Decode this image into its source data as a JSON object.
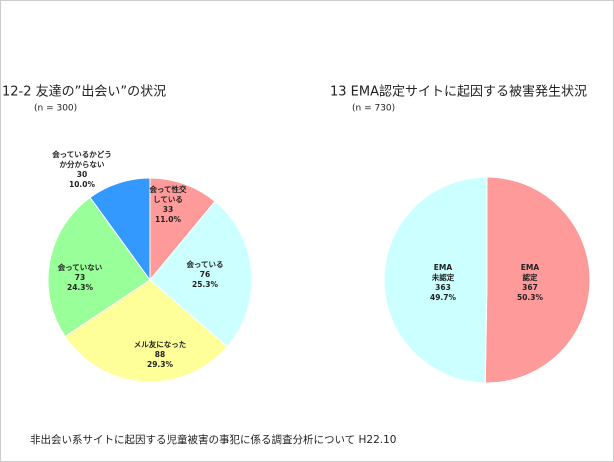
{
  "chart_data": [
    {
      "type": "pie",
      "title": "12-2 友達の”出会い”の状況",
      "subtitle": "(n = 300)",
      "categories": [
        [
          "会って性交",
          "している"
        ],
        [
          "会っている"
        ],
        [
          "メル友になった"
        ],
        [
          "会っていない"
        ],
        [
          "会っているかどう",
          "か分からない"
        ]
      ],
      "values": [
        33,
        76,
        88,
        73,
        30
      ],
      "percent_labels": [
        "11.0%",
        "25.3%",
        "29.3%",
        "24.3%",
        "10.0%"
      ],
      "colors": [
        "#ff9a9a",
        "#ccffff",
        "#ffff99",
        "#99ff99",
        "#3399ff"
      ]
    },
    {
      "type": "pie",
      "title": "13 EMA認定サイトに起因する被害発生状況",
      "subtitle": "(n = 730)",
      "categories": [
        [
          "EMA",
          "認定"
        ],
        [
          "EMA",
          "未認定"
        ]
      ],
      "values": [
        367,
        363
      ],
      "percent_labels": [
        "50.3%",
        "49.7%"
      ],
      "colors": [
        "#ff9a9a",
        "#ccffff"
      ]
    }
  ],
  "footer": "非出会い系サイトに起因する児童被害の事犯に係る調査分析について H22.10"
}
